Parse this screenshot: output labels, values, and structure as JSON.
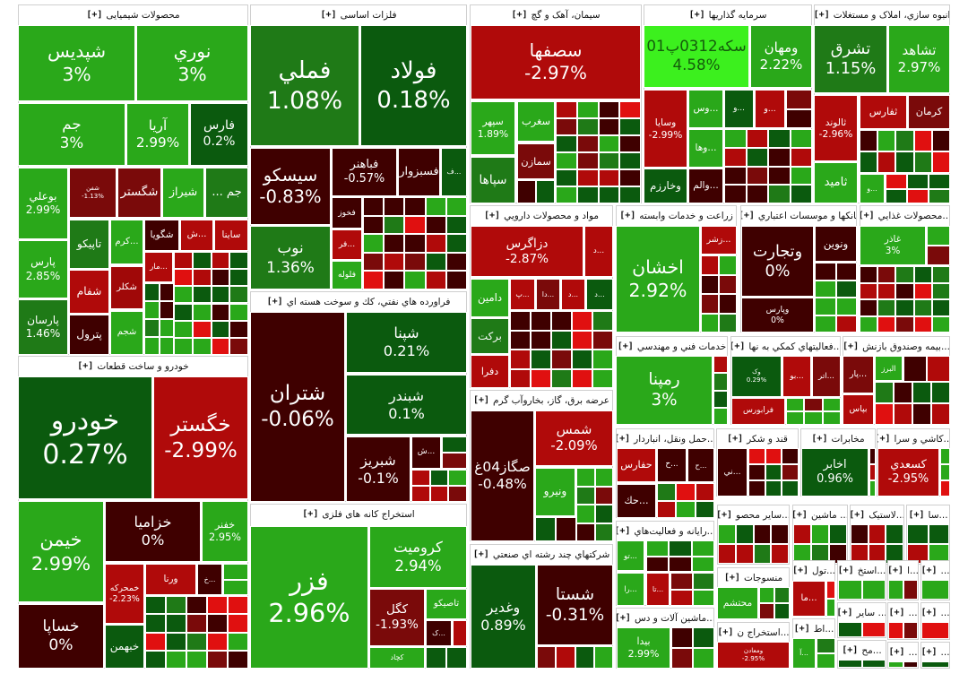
{
  "expand_label": "[+]",
  "colors": {
    "strong_up": "#2aa81a",
    "up": "#1f7a17",
    "flat_up": "#0b5a0e",
    "flat_down": "#3f0000",
    "down": "#7a0a0a",
    "strong_down": "#b00a0a",
    "max_up": "#3cf01e"
  },
  "sectors": [
    {
      "title": "محصولات شیمیایی",
      "tiles": [
        {
          "symbol": "شپديس",
          "change": "3%",
          "color": "#2aa81a"
        },
        {
          "symbol": "نوري",
          "change": "3%",
          "color": "#2aa81a"
        },
        {
          "symbol": "جم",
          "change": "3%",
          "color": "#2aa81a"
        },
        {
          "symbol": "آريا",
          "change": "2.99%",
          "color": "#2aa81a"
        },
        {
          "symbol": "فارس",
          "change": "0.2%",
          "color": "#0b5a0e"
        },
        {
          "symbol": "بوعلي",
          "change": "2.99%",
          "color": "#2aa81a"
        },
        {
          "symbol": "پارس",
          "change": "2.85%",
          "color": "#2aa81a"
        },
        {
          "symbol": "پارسان",
          "change": "1.46%",
          "color": "#1f7a17"
        },
        {
          "symbol": "شفن",
          "change": "-1.13%",
          "color": "#7a0a0a"
        },
        {
          "symbol": "شگستر",
          "color": "#7a0a0a"
        },
        {
          "symbol": "شيراز",
          "color": "#2aa81a"
        },
        {
          "symbol": "جم ...",
          "color": "#1f7a17"
        },
        {
          "symbol": "تاپيکو",
          "color": "#1f7a17"
        },
        {
          "symbol": "...کرم",
          "color": "#2aa81a"
        },
        {
          "symbol": "شگويا",
          "color": "#3f0000"
        },
        {
          "symbol": "...ش",
          "color": "#b00a0a"
        },
        {
          "symbol": "ساينا",
          "color": "#b00a0a"
        },
        {
          "symbol": "...مار",
          "color": "#b00a0a"
        },
        {
          "symbol": "شفام",
          "color": "#b00a0a"
        },
        {
          "symbol": "شکلر",
          "color": "#a00808"
        },
        {
          "symbol": "پترول",
          "color": "#3f0000"
        },
        {
          "symbol": "شجم",
          "color": "#2aa81a"
        }
      ]
    },
    {
      "title": "فلزات اساسی",
      "tiles": [
        {
          "symbol": "فملي",
          "change": "1.08%",
          "color": "#1f7a17"
        },
        {
          "symbol": "فولاد",
          "change": "0.18%",
          "color": "#0b5a0e"
        },
        {
          "symbol": "سيسکو",
          "change": "-0.83%",
          "color": "#3f0000"
        },
        {
          "symbol": "نوب",
          "change": "1.36%",
          "color": "#1f7a17"
        },
        {
          "symbol": "فباهنر",
          "change": "-0.57%",
          "color": "#3f0000"
        },
        {
          "symbol": "فسبزوار",
          "color": "#3f0000"
        },
        {
          "symbol": "...ف",
          "color": "#0b5a0e"
        },
        {
          "symbol": "فخوز",
          "color": "#3f0000"
        },
        {
          "symbol": "...فر",
          "color": "#b00a0a"
        },
        {
          "symbol": "فلوله",
          "color": "#2aa81a"
        }
      ]
    },
    {
      "title": "فراورده هاي نفتي، كك و سوخت هسته اي",
      "tiles": [
        {
          "symbol": "شتران",
          "change": "-0.06%",
          "color": "#3f0000"
        },
        {
          "symbol": "شپنا",
          "change": "0.21%",
          "color": "#0b5a0e"
        },
        {
          "symbol": "شبندر",
          "change": "0.1%",
          "color": "#0b5a0e"
        },
        {
          "symbol": "شبريز",
          "change": "-0.1%",
          "color": "#3f0000"
        },
        {
          "symbol": "...ش",
          "color": "#3f0000"
        }
      ]
    },
    {
      "title": "خودرو و ساخت قطعات",
      "tiles": [
        {
          "symbol": "خودرو",
          "change": "0.27%",
          "color": "#0b5a0e"
        },
        {
          "symbol": "خگستر",
          "change": "-2.99%",
          "color": "#b00a0a"
        },
        {
          "symbol": "خيمن",
          "change": "2.99%",
          "color": "#2aa81a"
        },
        {
          "symbol": "خساپا",
          "change": "0%",
          "color": "#3f0000"
        },
        {
          "symbol": "خزاميا",
          "change": "0%",
          "color": "#3f0000"
        },
        {
          "symbol": "خفنر",
          "change": "2.95%",
          "color": "#2aa81a"
        },
        {
          "symbol": "خمحرکه",
          "change": "-2.23%",
          "color": "#b00a0a"
        },
        {
          "symbol": "ورنا",
          "color": "#b00a0a"
        },
        {
          "symbol": "...خ",
          "color": "#3f0000"
        },
        {
          "symbol": "خبهمن",
          "color": "#0b5a0e"
        }
      ]
    },
    {
      "title": "استخراج کانه های فلزی",
      "tiles": [
        {
          "symbol": "فزر",
          "change": "2.96%",
          "color": "#2aa81a"
        },
        {
          "symbol": "کروميت",
          "change": "2.94%",
          "color": "#2aa81a"
        },
        {
          "symbol": "کگل",
          "change": "-1.93%",
          "color": "#7a0a0a"
        },
        {
          "symbol": "تاصيکو",
          "color": "#2aa81a"
        },
        {
          "symbol": "...ک",
          "color": "#3f0000"
        },
        {
          "symbol": "کچاد",
          "color": "#2aa81a"
        }
      ]
    },
    {
      "title": "سيمان، آهک و گچ",
      "tiles": [
        {
          "symbol": "سصفها",
          "change": "-2.97%",
          "color": "#b00a0a"
        },
        {
          "symbol": "سپهر",
          "change": "1.89%",
          "color": "#2aa81a"
        },
        {
          "symbol": "سپاها",
          "color": "#1f7a17"
        },
        {
          "symbol": "سغرب",
          "color": "#2aa81a"
        },
        {
          "symbol": "سمازن",
          "color": "#7a0a0a"
        }
      ]
    },
    {
      "title": "سرمايه گذاريها",
      "tiles": [
        {
          "symbol": "سکه0312پ01",
          "change": "4.58%",
          "color": "#3cf01e"
        },
        {
          "symbol": "ومهان",
          "change": "2.22%",
          "color": "#2aa81a"
        },
        {
          "symbol": "وسايا",
          "change": "-2.99%",
          "color": "#b00a0a"
        },
        {
          "symbol": "وخارزم",
          "color": "#0b5a0e"
        },
        {
          "symbol": "...وس",
          "color": "#2aa81a"
        },
        {
          "symbol": "...وها",
          "color": "#2aa81a"
        },
        {
          "symbol": "...والم",
          "color": "#3f0000"
        },
        {
          "symbol": "...و",
          "color": "#0b5a0e"
        },
        {
          "symbol": "...و",
          "color": "#b00a0a"
        }
      ]
    },
    {
      "title": "انبوه سازي، املاک و مستغلات",
      "tiles": [
        {
          "symbol": "تشرق",
          "change": "1.15%",
          "color": "#1f7a17"
        },
        {
          "symbol": "تشاهد",
          "change": "2.97%",
          "color": "#2aa81a"
        },
        {
          "symbol": "ثالوند",
          "change": "-2.96%",
          "color": "#b00a0a"
        },
        {
          "symbol": "ثاميد",
          "color": "#2aa81a"
        },
        {
          "symbol": "ثفارس",
          "color": "#b00a0a"
        },
        {
          "symbol": "کرمان",
          "color": "#7a0a0a"
        },
        {
          "symbol": "...و",
          "color": "#2aa81a"
        }
      ]
    },
    {
      "title": "مواد و محصولات دارويي",
      "tiles": [
        {
          "symbol": "دزاگرس",
          "change": "-2.87%",
          "color": "#b00a0a"
        },
        {
          "symbol": "...د",
          "color": "#b00a0a"
        },
        {
          "symbol": "دامين",
          "color": "#2aa81a"
        },
        {
          "symbol": "برکت",
          "color": "#1f7a17"
        },
        {
          "symbol": "دفرا",
          "color": "#b00a0a"
        },
        {
          "symbol": "...پ",
          "color": "#b00a0a"
        },
        {
          "symbol": "...دا",
          "color": "#7a0a0a"
        },
        {
          "symbol": "...د",
          "color": "#b00a0a"
        },
        {
          "symbol": "...د",
          "color": "#0b5a0e"
        }
      ]
    },
    {
      "title": "زراعت و خدمات وابسته",
      "tiles": [
        {
          "symbol": "اخشان",
          "change": "2.92%",
          "color": "#2aa81a"
        },
        {
          "symbol": "...زشر",
          "color": "#b00a0a"
        }
      ]
    },
    {
      "title": "بانکها و موسسات اعتباري",
      "tiles": [
        {
          "symbol": "وتجارت",
          "change": "0%",
          "color": "#3f0000"
        },
        {
          "symbol": "وپارس",
          "change": "0%",
          "color": "#3f0000"
        },
        {
          "symbol": "ونوين",
          "color": "#3f0000"
        }
      ]
    },
    {
      "title": "...محصولات غذايي",
      "tiles": [
        {
          "symbol": "غاذر",
          "change": "3%",
          "color": "#2aa81a"
        }
      ]
    },
    {
      "title": "عرضه برق، گاز، بخاروآب گرم",
      "tiles": [
        {
          "symbol": "صگاز04غ",
          "change": "-0.48%",
          "color": "#3f0000"
        },
        {
          "symbol": "شمس",
          "change": "-2.09%",
          "color": "#b00a0a"
        },
        {
          "symbol": "ونيرو",
          "color": "#2aa81a"
        }
      ]
    },
    {
      "title": "شرکتهاي چند رشته اي صنعتي",
      "tiles": [
        {
          "symbol": "وغدير",
          "change": "0.89%",
          "color": "#0b5a0e"
        },
        {
          "symbol": "شستا",
          "change": "-0.31%",
          "color": "#3f0000"
        }
      ]
    },
    {
      "title": "خدمات فني و مهندسي",
      "tiles": [
        {
          "symbol": "رمپنا",
          "change": "3%",
          "color": "#2aa81a"
        }
      ]
    },
    {
      "title": "...فعاليتهاي کمکي به نها",
      "tiles": [
        {
          "symbol": "وک",
          "change": "0.29%",
          "color": "#0b5a0e"
        },
        {
          "symbol": "فرابورس",
          "color": "#b00a0a"
        },
        {
          "symbol": "...بو",
          "color": "#b00a0a"
        },
        {
          "symbol": "...اتر",
          "color": "#7a0a0a"
        }
      ]
    },
    {
      "title": "...بيمه وصندوق بازنش",
      "tiles": [
        {
          "symbol": "...پار",
          "color": "#7a0a0a"
        },
        {
          "symbol": "بپاس",
          "color": "#b00a0a"
        },
        {
          "symbol": "البرز",
          "color": "#2aa81a"
        }
      ]
    },
    {
      "title": "...حمل ونقل، انباردار",
      "tiles": [
        {
          "symbol": "حفارس",
          "color": "#b00a0a"
        },
        {
          "symbol": "...حك",
          "color": "#3f0000"
        },
        {
          "symbol": "...ح",
          "color": "#3f0000"
        },
        {
          "symbol": "...ح",
          "color": "#3f0000"
        }
      ]
    },
    {
      "title": "قند و شکر",
      "tiles": [
        {
          "symbol": "...ني",
          "color": "#3f0000"
        }
      ]
    },
    {
      "title": "مخابرات",
      "tiles": [
        {
          "symbol": "اخابر",
          "change": "0.96%",
          "color": "#0b5a0e"
        }
      ]
    },
    {
      "title": "...کاشي و سرا",
      "tiles": [
        {
          "symbol": "کسعدي",
          "change": "-2.95%",
          "color": "#b00a0a"
        }
      ]
    },
    {
      "title": "...رايانه و فعاليت‌هاي",
      "tiles": [
        {
          "symbol": "...تو",
          "color": "#2aa81a"
        },
        {
          "symbol": "...را",
          "color": "#2aa81a"
        },
        {
          "symbol": "...تا",
          "color": "#b00a0a"
        }
      ]
    },
    {
      "title": "...ماشين آلات و دس",
      "tiles": [
        {
          "symbol": "بيدا",
          "change": "2.99%",
          "color": "#2aa81a"
        }
      ]
    },
    {
      "title": "...ساير محصو",
      "tiles": []
    },
    {
      "title": "... ماشين",
      "tiles": []
    },
    {
      "title": "...لاستيک",
      "tiles": []
    },
    {
      "title": "...سا",
      "tiles": []
    },
    {
      "title": "منسوجات",
      "tiles": [
        {
          "symbol": "محتشم",
          "color": "#2aa81a"
        }
      ]
    },
    {
      "title": "...استخراج ن",
      "tiles": [
        {
          "symbol": "ومعادن",
          "change": "-2.95%",
          "color": "#b00a0a"
        }
      ]
    },
    {
      "title": "...تول",
      "tiles": [
        {
          "symbol": "...ما",
          "color": "#b00a0a"
        }
      ]
    },
    {
      "title": "...اط",
      "tiles": [
        {
          "symbol": "...آ",
          "color": "#2aa81a"
        }
      ]
    },
    {
      "title": "...استخ",
      "tiles": []
    },
    {
      "title": "...ا",
      "tiles": []
    },
    {
      "title": "...",
      "tiles": []
    },
    {
      "title": "... ساير",
      "tiles": []
    },
    {
      "title": "...",
      "tiles": []
    },
    {
      "title": "...",
      "tiles": []
    },
    {
      "title": "...مح",
      "tiles": []
    },
    {
      "title": "...",
      "tiles": []
    },
    {
      "title": "...",
      "tiles": []
    }
  ]
}
